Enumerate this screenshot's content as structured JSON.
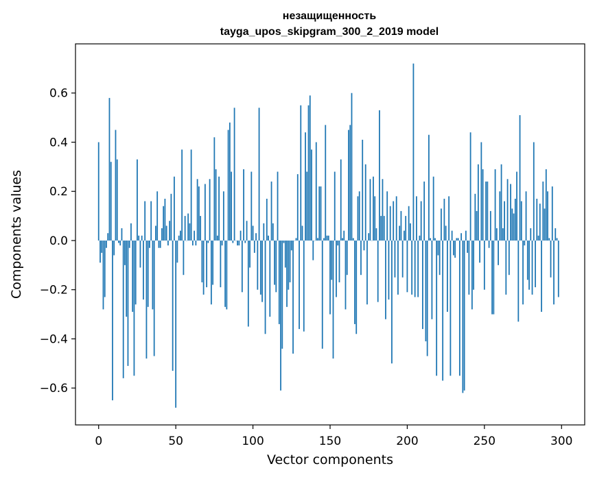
{
  "chart_data": {
    "type": "bar",
    "title": "незащищенность",
    "subtitle": "tayga_upos_skipgram_300_2_2019 model",
    "xlabel": "Vector components",
    "ylabel": "Components values",
    "xlim": [
      -15,
      315
    ],
    "ylim": [
      -0.75,
      0.8
    ],
    "x_ticks": [
      0,
      50,
      100,
      150,
      200,
      250,
      300
    ],
    "x_tick_labels": [
      "0",
      "50",
      "100",
      "150",
      "200",
      "250",
      "300"
    ],
    "y_ticks": [
      -0.6,
      -0.4,
      -0.2,
      0.0,
      0.2,
      0.4,
      0.6
    ],
    "y_tick_labels": [
      "−0.6",
      "−0.4",
      "−0.2",
      "0.0",
      "0.2",
      "0.4",
      "0.6"
    ],
    "bar_color": "#1f77b4",
    "series": [
      {
        "name": "components",
        "values": [
          0.4,
          -0.09,
          -0.05,
          -0.28,
          -0.23,
          -0.03,
          0.03,
          0.58,
          0.32,
          -0.65,
          -0.06,
          0.45,
          0.33,
          -0.01,
          -0.02,
          0.05,
          -0.56,
          -0.1,
          -0.31,
          -0.51,
          -0.03,
          0.07,
          -0.29,
          -0.55,
          -0.26,
          0.33,
          0.02,
          -0.11,
          0.02,
          -0.24,
          0.16,
          -0.48,
          -0.27,
          -0.03,
          0.16,
          -0.28,
          -0.47,
          0.06,
          0.2,
          -0.03,
          -0.03,
          0.05,
          0.14,
          0.17,
          0.06,
          -0.02,
          0.08,
          0.19,
          -0.53,
          0.26,
          -0.68,
          -0.09,
          0.02,
          0.04,
          0.37,
          -0.14,
          0.1,
          0.0,
          0.11,
          0.07,
          0.37,
          -0.02,
          0.04,
          -0.02,
          0.25,
          0.22,
          0.1,
          -0.17,
          -0.22,
          0.23,
          -0.19,
          -0.01,
          0.25,
          -0.26,
          -0.18,
          0.42,
          0.29,
          0.02,
          0.26,
          -0.19,
          -0.02,
          0.2,
          -0.27,
          -0.28,
          0.45,
          0.48,
          0.28,
          -0.01,
          0.54,
          0.0,
          -0.02,
          -0.02,
          0.04,
          -0.21,
          0.29,
          -0.01,
          0.08,
          -0.35,
          -0.11,
          0.28,
          0.06,
          -0.05,
          0.03,
          -0.2,
          0.54,
          -0.22,
          -0.25,
          0.07,
          -0.38,
          0.17,
          0.02,
          -0.31,
          0.24,
          0.07,
          -0.18,
          -0.21,
          0.28,
          -0.34,
          -0.61,
          -0.44,
          -0.01,
          -0.11,
          -0.27,
          -0.2,
          -0.17,
          -0.04,
          -0.46,
          0.0,
          0.01,
          0.27,
          -0.36,
          0.55,
          0.06,
          -0.37,
          0.44,
          0.28,
          0.55,
          0.59,
          0.37,
          -0.08,
          0.0,
          0.4,
          0.01,
          0.22,
          0.22,
          -0.44,
          0.01,
          0.47,
          0.02,
          0.02,
          -0.3,
          -0.16,
          -0.48,
          0.28,
          -0.23,
          -0.02,
          -0.17,
          0.33,
          0.01,
          0.04,
          -0.28,
          -0.14,
          0.45,
          0.47,
          0.6,
          0.01,
          -0.34,
          -0.38,
          0.18,
          0.2,
          -0.14,
          0.41,
          -0.04,
          0.31,
          -0.26,
          0.03,
          0.25,
          0.0,
          0.26,
          0.18,
          0.05,
          -0.25,
          0.53,
          0.1,
          0.25,
          0.1,
          -0.32,
          0.2,
          -0.24,
          0.14,
          -0.5,
          0.16,
          -0.15,
          0.18,
          -0.22,
          0.06,
          0.12,
          -0.15,
          0.04,
          0.1,
          -0.21,
          0.14,
          0.07,
          -0.22,
          0.72,
          -0.23,
          0.18,
          -0.23,
          0.02,
          0.16,
          -0.36,
          0.24,
          -0.41,
          -0.47,
          0.43,
          0.01,
          -0.32,
          0.26,
          0.01,
          -0.55,
          -0.06,
          -0.14,
          0.13,
          -0.57,
          0.17,
          0.06,
          -0.29,
          0.18,
          -0.55,
          0.04,
          -0.06,
          -0.07,
          0.01,
          0.01,
          -0.55,
          0.03,
          -0.62,
          -0.61,
          0.04,
          -0.05,
          -0.22,
          0.44,
          -0.28,
          -0.2,
          0.19,
          0.12,
          0.31,
          -0.09,
          0.4,
          0.29,
          -0.2,
          0.24,
          0.24,
          -0.03,
          0.12,
          -0.3,
          -0.3,
          0.29,
          0.05,
          -0.1,
          0.2,
          0.31,
          0.05,
          0.16,
          -0.22,
          0.25,
          -0.14,
          0.23,
          0.13,
          0.11,
          0.17,
          0.28,
          -0.33,
          0.51,
          0.16,
          -0.26,
          -0.02,
          0.2,
          -0.16,
          -0.2,
          0.05,
          -0.22,
          0.4,
          -0.19,
          0.17,
          0.02,
          0.15,
          -0.29,
          0.24,
          0.13,
          0.29,
          0.2,
          0.01,
          -0.15,
          0.22,
          -0.26,
          0.05,
          0.01,
          -0.23
        ]
      }
    ],
    "grid": false
  }
}
